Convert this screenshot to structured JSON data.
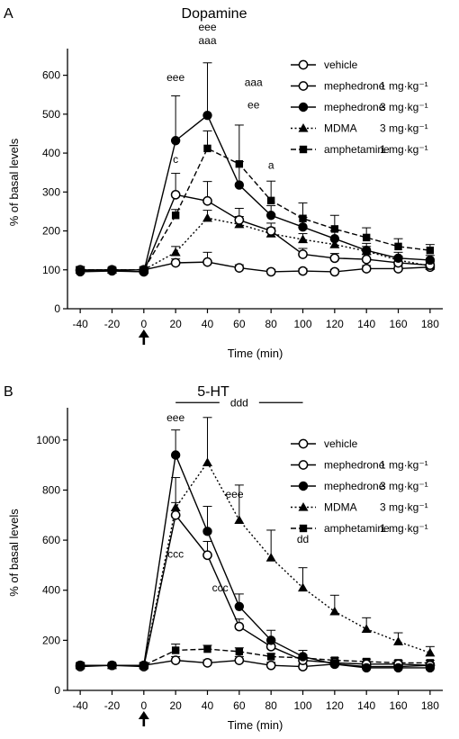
{
  "chart_data": [
    {
      "type": "line",
      "panel_letter": "A",
      "title": "Dopamine",
      "xlabel": "Time (min)",
      "ylabel": "% of basal levels",
      "x": [
        -40,
        -20,
        0,
        20,
        40,
        60,
        80,
        100,
        120,
        140,
        160,
        180
      ],
      "x_ticks": [
        "-40",
        "-20",
        "0",
        "20",
        "40",
        "60",
        "80",
        "100",
        "120",
        "140",
        "160",
        "180"
      ],
      "xlim": [
        -48,
        188
      ],
      "ylim": [
        0,
        650
      ],
      "y_ticks": [
        "0",
        "100",
        "200",
        "300",
        "400",
        "500",
        "600"
      ],
      "y_tick_values": [
        0,
        100,
        200,
        300,
        400,
        500,
        600
      ],
      "injection_arrow_x": 0,
      "legend_position": "top-right",
      "series": [
        {
          "name": "vehicle",
          "dose": "",
          "style": "solid",
          "marker": "open-circle",
          "values": [
            100,
            100,
            100,
            118,
            120,
            105,
            95,
            97,
            95,
            103,
            103,
            107
          ],
          "errors": [
            8,
            6,
            6,
            10,
            25,
            8,
            6,
            6,
            6,
            8,
            8,
            8
          ]
        },
        {
          "name": "mephedrone",
          "dose": "1 mg·kg⁻¹",
          "style": "solid",
          "marker": "open-circle",
          "values": [
            98,
            98,
            95,
            293,
            277,
            228,
            200,
            140,
            130,
            127,
            118,
            112
          ],
          "errors": [
            8,
            6,
            8,
            55,
            50,
            30,
            20,
            15,
            12,
            12,
            10,
            10
          ]
        },
        {
          "name": "mephedrone",
          "dose": "3 mg·kg⁻¹",
          "style": "solid",
          "marker": "filled-circle",
          "values": [
            95,
            97,
            95,
            432,
            497,
            318,
            240,
            210,
            180,
            150,
            130,
            125
          ],
          "errors": [
            8,
            6,
            8,
            115,
            135,
            60,
            25,
            25,
            20,
            18,
            15,
            12
          ]
        },
        {
          "name": "MDMA",
          "dose": "3 mg·kg⁻¹",
          "style": "dotted",
          "marker": "filled-triangle",
          "values": [
            100,
            100,
            100,
            145,
            233,
            217,
            193,
            178,
            165,
            148,
            125,
            110
          ],
          "errors": [
            8,
            6,
            6,
            15,
            20,
            20,
            15,
            15,
            15,
            12,
            10,
            10
          ]
        },
        {
          "name": "amphetamine",
          "dose": "1 mg·kg⁻¹",
          "style": "dashed",
          "marker": "filled-square",
          "values": [
            100,
            100,
            100,
            240,
            412,
            372,
            278,
            232,
            205,
            183,
            160,
            150
          ],
          "errors": [
            8,
            6,
            8,
            15,
            45,
            100,
            50,
            40,
            35,
            25,
            20,
            15
          ]
        }
      ],
      "annotations": [
        {
          "text": "eee",
          "x": 20,
          "y": 585
        },
        {
          "text": "c",
          "x": 20,
          "y": 375
        },
        {
          "text": "eee",
          "x": 40,
          "y": 715
        },
        {
          "text": "aaa",
          "x": 40,
          "y": 680
        },
        {
          "text": "aaa",
          "x": 69,
          "y": 572
        },
        {
          "text": "ee",
          "x": 69,
          "y": 515
        },
        {
          "text": "a",
          "x": 80,
          "y": 360
        }
      ]
    },
    {
      "type": "line",
      "panel_letter": "B",
      "title": "5-HT",
      "xlabel": "Time (min)",
      "ylabel": "% of basal levels",
      "x": [
        -40,
        -20,
        0,
        20,
        40,
        60,
        80,
        100,
        120,
        140,
        160,
        180
      ],
      "x_ticks": [
        "-40",
        "-20",
        "0",
        "20",
        "40",
        "60",
        "80",
        "100",
        "120",
        "140",
        "160",
        "180"
      ],
      "xlim": [
        -48,
        188
      ],
      "ylim": [
        0,
        1100
      ],
      "y_ticks": [
        "0",
        "200",
        "400",
        "600",
        "800",
        "1000"
      ],
      "y_tick_values": [
        0,
        200,
        400,
        600,
        800,
        1000
      ],
      "injection_arrow_x": 0,
      "legend_position": "top-right",
      "series": [
        {
          "name": "vehicle",
          "dose": "",
          "style": "solid",
          "marker": "open-circle",
          "values": [
            100,
            100,
            100,
            120,
            110,
            120,
            100,
            95,
            105,
            95,
            95,
            100
          ],
          "errors": [
            10,
            8,
            10,
            15,
            12,
            15,
            12,
            10,
            10,
            10,
            10,
            10
          ]
        },
        {
          "name": "mephedrone",
          "dose": "1 mg·kg⁻¹",
          "style": "solid",
          "marker": "open-circle",
          "values": [
            95,
            100,
            95,
            700,
            540,
            255,
            175,
            120,
            110,
            105,
            105,
            100
          ],
          "errors": [
            10,
            8,
            10,
            50,
            55,
            30,
            25,
            15,
            12,
            10,
            10,
            10
          ]
        },
        {
          "name": "mephedrone",
          "dose": "3 mg·kg⁻¹",
          "style": "solid",
          "marker": "filled-circle",
          "values": [
            100,
            100,
            100,
            940,
            635,
            335,
            200,
            135,
            105,
            90,
            90,
            90
          ],
          "errors": [
            10,
            8,
            10,
            100,
            100,
            50,
            40,
            25,
            15,
            12,
            12,
            12
          ]
        },
        {
          "name": "MDMA",
          "dose": "3 mg·kg⁻¹",
          "style": "dotted",
          "marker": "filled-triangle",
          "values": [
            100,
            100,
            100,
            730,
            910,
            680,
            530,
            410,
            315,
            245,
            195,
            150
          ],
          "errors": [
            10,
            8,
            10,
            120,
            180,
            140,
            110,
            80,
            65,
            45,
            35,
            25
          ]
        },
        {
          "name": "amphetamine",
          "dose": "1 mg·kg⁻¹",
          "style": "dashed",
          "marker": "filled-square",
          "values": [
            100,
            100,
            100,
            160,
            165,
            155,
            135,
            130,
            120,
            115,
            110,
            110
          ],
          "errors": [
            10,
            8,
            10,
            25,
            15,
            15,
            12,
            12,
            10,
            10,
            10,
            10
          ]
        }
      ],
      "annotations": [
        {
          "text": "ddd",
          "x": 60,
          "y": 1135
        },
        {
          "text": "eee",
          "x": 20,
          "y": 1075
        },
        {
          "text": "eee",
          "x": 57,
          "y": 770
        },
        {
          "text": "ccc",
          "x": 20,
          "y": 530
        },
        {
          "text": "ccc",
          "x": 48,
          "y": 395
        },
        {
          "text": "dd",
          "x": 100,
          "y": 590
        }
      ],
      "bracket": {
        "x_start": 20,
        "x_end": 100,
        "y": 1135
      }
    }
  ]
}
